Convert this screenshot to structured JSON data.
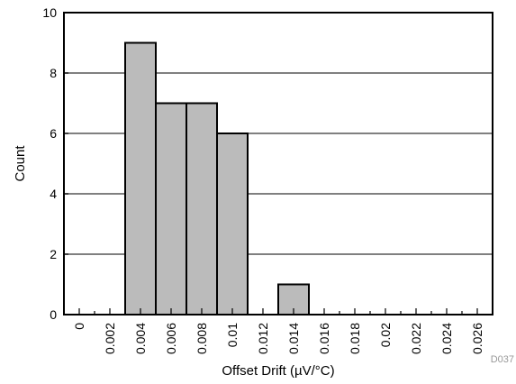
{
  "chart_data": {
    "type": "bar",
    "title": "",
    "xlabel": "Offset Drift (µV/°C)",
    "ylabel": "Count",
    "categories": [
      "0",
      "0.002",
      "0.004",
      "0.006",
      "0.008",
      "0.01",
      "0.012",
      "0.014",
      "0.016",
      "0.018",
      "0.02",
      "0.022",
      "0.024",
      "0.026"
    ],
    "values": [
      0,
      0,
      9,
      7,
      7,
      6,
      0,
      1,
      0,
      0,
      0,
      0,
      0,
      0
    ],
    "ylim": [
      0,
      10
    ],
    "yticks": [
      "0",
      "2",
      "4",
      "6",
      "8",
      "10"
    ],
    "grid": true,
    "bar_color": "#bbbbbb",
    "code": "D037"
  }
}
